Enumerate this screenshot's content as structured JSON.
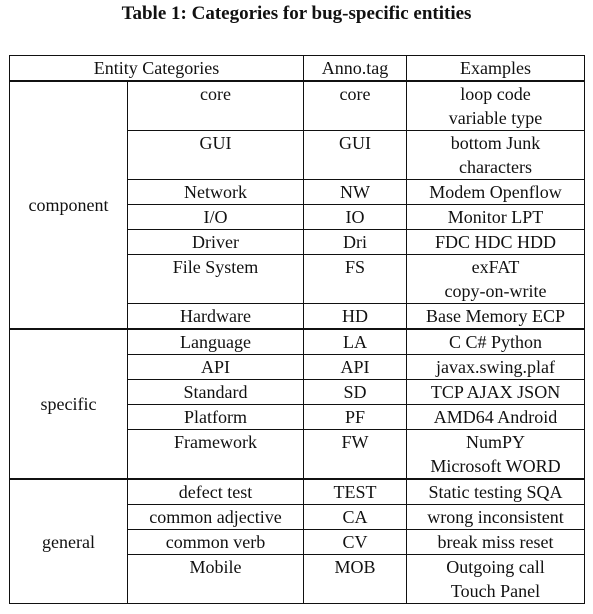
{
  "caption": "Table 1: Categories for bug-specific entities",
  "headers": {
    "entity_categories": "Entity Categories",
    "anno_tag": "Anno.tag",
    "examples": "Examples"
  },
  "groups": [
    {
      "name": "component",
      "rows": [
        {
          "category": "core",
          "tag": "core",
          "examples": [
            "loop code",
            "variable type"
          ]
        },
        {
          "category": "GUI",
          "tag": "GUI",
          "examples": [
            "bottom Junk",
            "characters"
          ]
        },
        {
          "category": "Network",
          "tag": "NW",
          "examples": [
            "Modem Openflow"
          ]
        },
        {
          "category": "I/O",
          "tag": "IO",
          "examples": [
            "Monitor LPT"
          ]
        },
        {
          "category": "Driver",
          "tag": "Dri",
          "examples": [
            "FDC HDC HDD"
          ]
        },
        {
          "category": "File System",
          "tag": "FS",
          "examples": [
            "exFAT",
            "copy-on-write"
          ]
        },
        {
          "category": "Hardware",
          "tag": "HD",
          "examples": [
            "Base Memory ECP"
          ]
        }
      ]
    },
    {
      "name": "specific",
      "rows": [
        {
          "category": "Language",
          "tag": "LA",
          "examples": [
            "C C# Python"
          ]
        },
        {
          "category": "API",
          "tag": "API",
          "examples": [
            "javax.swing.plaf"
          ]
        },
        {
          "category": "Standard",
          "tag": "SD",
          "examples": [
            "TCP AJAX JSON"
          ]
        },
        {
          "category": "Platform",
          "tag": "PF",
          "examples": [
            "AMD64 Android"
          ]
        },
        {
          "category": "Framework",
          "tag": "FW",
          "examples": [
            "NumPY",
            "Microsoft WORD"
          ]
        }
      ]
    },
    {
      "name": "general",
      "rows": [
        {
          "category": "defect test",
          "tag": "TEST",
          "examples": [
            "Static testing SQA"
          ]
        },
        {
          "category": "common adjective",
          "tag": "CA",
          "examples": [
            "wrong inconsistent"
          ]
        },
        {
          "category": "common verb",
          "tag": "CV",
          "examples": [
            "break miss reset"
          ]
        },
        {
          "category": "Mobile",
          "tag": "MOB",
          "examples": [
            "Outgoing call",
            "Touch Panel"
          ]
        }
      ]
    }
  ]
}
